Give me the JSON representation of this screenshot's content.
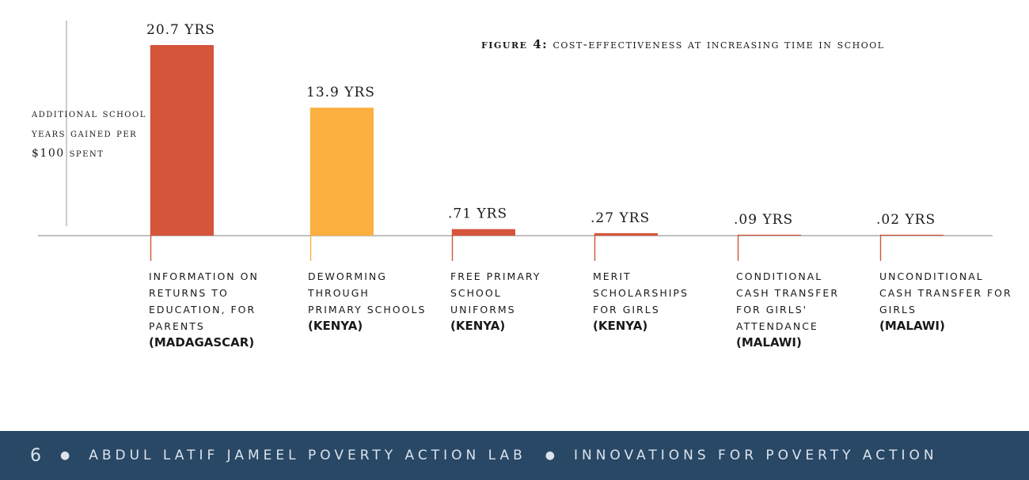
{
  "figure_label": "figure 4:",
  "figure_title": "cost-effectiveness at increasing time in school",
  "chart_data": {
    "type": "bar",
    "title": "figure 4: cost-effectiveness at increasing time in school",
    "ylabel": "additional school years gained per $100 spent",
    "categories": [
      "Information on returns to education, for parents (Madagascar)",
      "Deworming through primary schools (Kenya)",
      "Free primary school uniforms (Kenya)",
      "Merit scholarships for girls (Kenya)",
      "Conditional cash transfer for girls' attendance (Malawi)",
      "Unconditional cash transfer for girls (Malawi)"
    ],
    "values": [
      20.7,
      13.9,
      0.71,
      0.27,
      0.09,
      0.02
    ],
    "value_labels": [
      "20.7 YRS",
      "13.9 YRS",
      ".71 YRS",
      ".27 YRS",
      ".09 YRS",
      ".02 YRS"
    ],
    "ylim": [
      0,
      20.7
    ],
    "grid": false,
    "legend": "none"
  },
  "categories_display": [
    {
      "lines": "information on returns to education, for parents",
      "country": "(MADAGASCAR)"
    },
    {
      "lines": "deworming through primary schools",
      "country": "(KENYA)"
    },
    {
      "lines": "free primary school uniforms",
      "country": "(KENYA)"
    },
    {
      "lines": "merit scholarships for girls",
      "country": "(KENYA)"
    },
    {
      "lines": "conditional cash transfer for girls' attendance",
      "country": "(MALAWI)"
    },
    {
      "lines": "unconditional cash transfer for girls",
      "country": "(MALAWI)"
    }
  ],
  "colors": {
    "bar_red": "#d4553a",
    "bar_orange": "#fbb040",
    "axis": "#9a9a9a",
    "footer_bg": "#294866"
  },
  "footer": {
    "page_number": "6",
    "left_org": "ABDUL LATIF JAMEEL POVERTY ACTION LAB",
    "right_org": "INNOVATIONS FOR POVERTY ACTION"
  }
}
